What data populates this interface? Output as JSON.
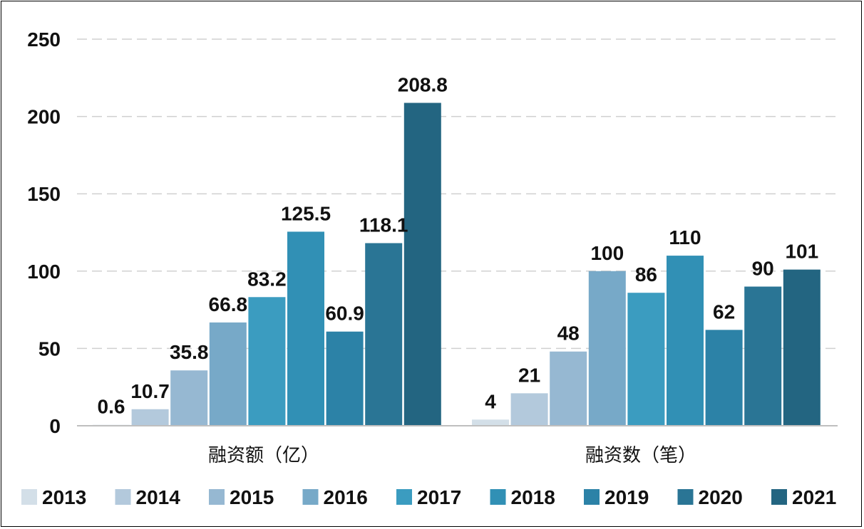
{
  "chart_data": {
    "type": "bar",
    "categories": [
      "融资额（亿）",
      "融资数（笔）"
    ],
    "series": [
      {
        "name": "2013",
        "values": [
          0.6,
          4
        ],
        "color": "#d3dfe8"
      },
      {
        "name": "2014",
        "values": [
          10.7,
          21
        ],
        "color": "#b3c9dc"
      },
      {
        "name": "2015",
        "values": [
          35.8,
          48
        ],
        "color": "#96b8d2"
      },
      {
        "name": "2016",
        "values": [
          66.8,
          100
        ],
        "color": "#77a9c8"
      },
      {
        "name": "2017",
        "values": [
          83.2,
          86
        ],
        "color": "#3b9cc0"
      },
      {
        "name": "2018",
        "values": [
          125.5,
          110
        ],
        "color": "#3190b5"
      },
      {
        "name": "2019",
        "values": [
          60.9,
          62
        ],
        "color": "#2c82a7"
      },
      {
        "name": "2020",
        "values": [
          118.1,
          90
        ],
        "color": "#2a7595"
      },
      {
        "name": "2021",
        "values": [
          208.8,
          101
        ],
        "color": "#236581"
      }
    ],
    "value_labels": [
      [
        "0.6",
        "4"
      ],
      [
        "10.7",
        "21"
      ],
      [
        "35.8",
        "48"
      ],
      [
        "66.8",
        "100"
      ],
      [
        "83.2",
        "86"
      ],
      [
        "125.5",
        "110"
      ],
      [
        "60.9",
        "62"
      ],
      [
        "118.1",
        "90"
      ],
      [
        "208.8",
        "101"
      ]
    ],
    "yticks": [
      "0",
      "50",
      "100",
      "150",
      "200",
      "250"
    ],
    "ylim": [
      0,
      250
    ],
    "grid": true,
    "legend_position": "bottom"
  }
}
